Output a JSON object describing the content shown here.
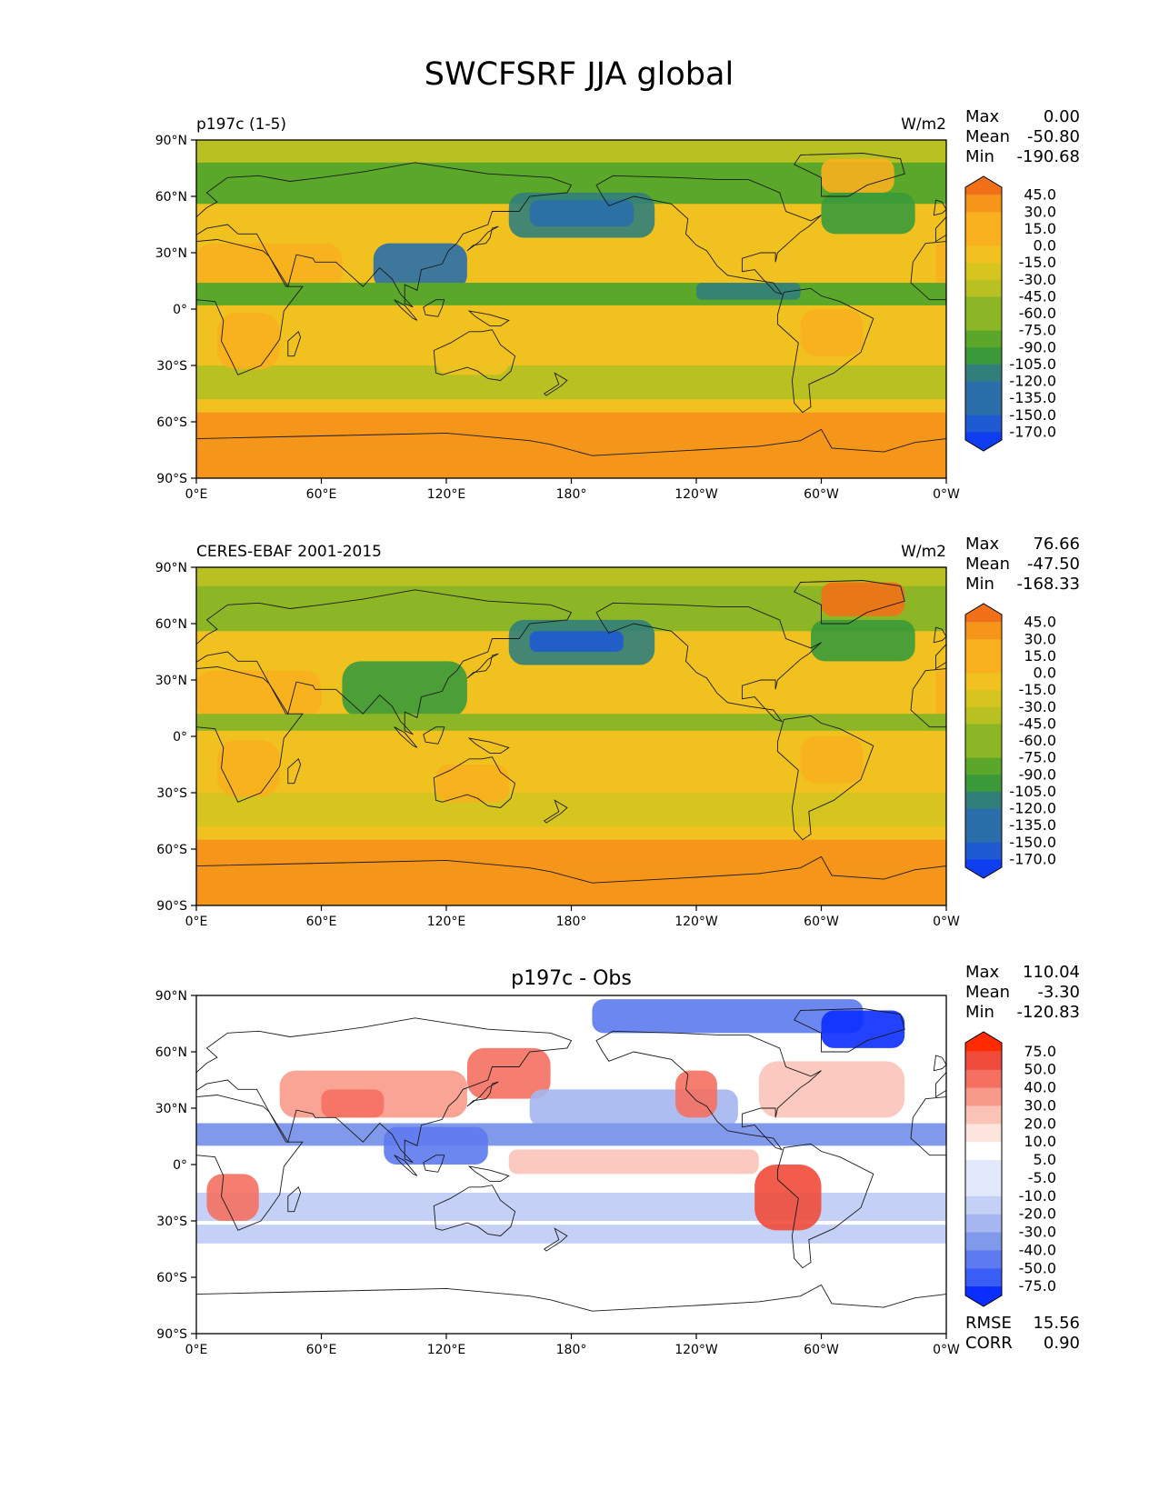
{
  "figure": {
    "title": "SWCFSRF JJA global"
  },
  "axes": {
    "lat_ticks": [
      "90°N",
      "60°N",
      "30°N",
      "0°",
      "30°S",
      "60°S",
      "90°S"
    ],
    "lon_ticks": [
      "0°E",
      "60°E",
      "120°E",
      "180°",
      "120°W",
      "60°W",
      "0°W"
    ]
  },
  "colors": {
    "field_ramp": [
      "#f27017",
      "#f5951a",
      "#f8b01e",
      "#f1c21f",
      "#d6c41f",
      "#b9c021",
      "#8cb625",
      "#5aa729",
      "#3a9a3a",
      "#317f7a",
      "#2a6faa",
      "#1e5ad2",
      "#0f3ef0"
    ],
    "diff_ramp": [
      "#ff2a00",
      "#f04a3a",
      "#f57060",
      "#f89a8a",
      "#fbc3b8",
      "#fde4dc",
      "#ffffff",
      "#e2e8fb",
      "#c4d0f6",
      "#a5b6f0",
      "#8199ea",
      "#5d7af0",
      "#3a5ef5",
      "#0a2eff"
    ],
    "coastline": "#1a1a1a"
  },
  "chart_data": [
    {
      "type": "heatmap",
      "title_left": "p197c (1-5)",
      "title_right": "W/m2",
      "stats": {
        "max_label": "Max",
        "max": "0.00",
        "mean_label": "Mean",
        "mean": "-50.80",
        "min_label": "Min",
        "min": "-190.68"
      },
      "colorbar_levels": [
        "45.0",
        "30.0",
        "15.0",
        "0.0",
        "-15.0",
        "-30.0",
        "-45.0",
        "-60.0",
        "-75.0",
        "-90.0",
        "-105.0",
        "-120.0",
        "-135.0",
        "-150.0",
        "-170.0"
      ],
      "xlim": [
        0,
        360
      ],
      "ylim": [
        -90,
        90
      ]
    },
    {
      "type": "heatmap",
      "title_left": "CERES-EBAF 2001-2015",
      "title_right": "W/m2",
      "stats": {
        "max_label": "Max",
        "max": "76.66",
        "mean_label": "Mean",
        "mean": "-47.50",
        "min_label": "Min",
        "min": "-168.33"
      },
      "colorbar_levels": [
        "45.0",
        "30.0",
        "15.0",
        "0.0",
        "-15.0",
        "-30.0",
        "-45.0",
        "-60.0",
        "-75.0",
        "-90.0",
        "-105.0",
        "-120.0",
        "-135.0",
        "-150.0",
        "-170.0"
      ],
      "xlim": [
        0,
        360
      ],
      "ylim": [
        -90,
        90
      ]
    },
    {
      "type": "heatmap",
      "title_center": "p197c - Obs",
      "stats": {
        "max_label": "Max",
        "max": "110.04",
        "mean_label": "Mean",
        "mean": "-3.30",
        "min_label": "Min",
        "min": "-120.83"
      },
      "colorbar_levels": [
        "75.0",
        "50.0",
        "40.0",
        "30.0",
        "20.0",
        "10.0",
        "5.0",
        "-5.0",
        "-10.0",
        "-20.0",
        "-30.0",
        "-40.0",
        "-50.0",
        "-75.0"
      ],
      "rmse_label": "RMSE",
      "rmse": "15.56",
      "corr_label": "CORR",
      "corr": "0.90",
      "xlim": [
        0,
        360
      ],
      "ylim": [
        -90,
        90
      ]
    }
  ]
}
